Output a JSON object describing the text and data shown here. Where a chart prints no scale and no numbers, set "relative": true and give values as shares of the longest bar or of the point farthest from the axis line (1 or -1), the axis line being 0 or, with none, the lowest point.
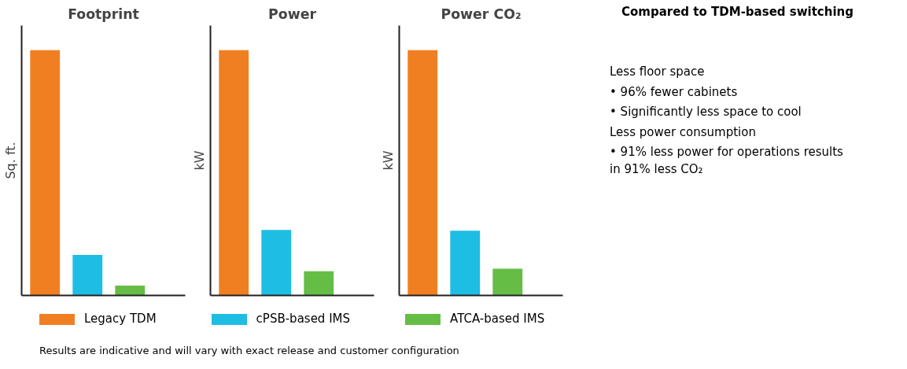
{
  "chart_data": [
    {
      "type": "bar",
      "title": "Footprint",
      "ylabel": "Sq. ft.",
      "relative": true,
      "categories": [
        null
      ],
      "legend": "bottom",
      "series": [
        {
          "name": "Legacy TDM",
          "color": "#f07f22",
          "values": [
            1
          ]
        },
        {
          "name": "cPSB-based IMS",
          "color": "#1ebde3",
          "values": [
            0.165
          ]
        },
        {
          "name": "ATCA-based IMS",
          "color": "#65bd46",
          "values": [
            0.04
          ]
        }
      ]
    },
    {
      "type": "bar",
      "title": "Power",
      "ylabel": "kW",
      "relative": true,
      "categories": [
        null
      ],
      "series": [
        {
          "color": "#f07f22",
          "values": [
            1
          ]
        },
        {
          "color": "#1ebde3",
          "values": [
            0.267
          ]
        },
        {
          "color": "#65bd46",
          "values": [
            0.099
          ]
        }
      ]
    },
    {
      "type": "bar",
      "title": "Power CO₂",
      "ylabel": "kW",
      "relative": true,
      "categories": [
        null
      ],
      "series": [
        {
          "color": "#f07f22",
          "values": [
            1
          ]
        },
        {
          "color": "#1ebde3",
          "values": [
            0.264
          ]
        },
        {
          "color": "#65bd46",
          "values": [
            0.109
          ]
        }
      ]
    },
    {
      "type": "other",
      "title": "Compared to TDM-based switching",
      "annotations": [
        "Less floor space",
        "• 96% fewer cabinets",
        "• Significantly less space to cool",
        "Less power consumption",
        "• 91% less power for operations results in 91% less CO₂",
        "Results are indicative and will vary with exact release and customer configuration"
      ]
    }
  ]
}
